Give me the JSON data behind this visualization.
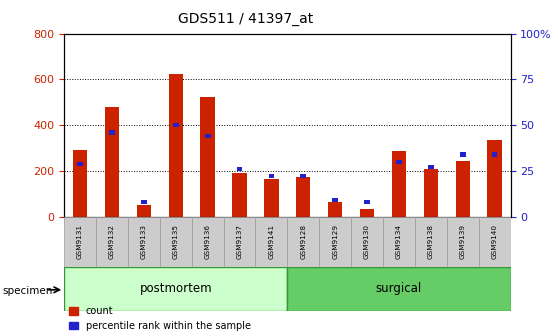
{
  "title": "GDS511 / 41397_at",
  "samples": [
    "GSM9131",
    "GSM9132",
    "GSM9133",
    "GSM9135",
    "GSM9136",
    "GSM9137",
    "GSM9141",
    "GSM9128",
    "GSM9129",
    "GSM9130",
    "GSM9134",
    "GSM9138",
    "GSM9139",
    "GSM9140"
  ],
  "count_values": [
    290,
    480,
    50,
    625,
    525,
    190,
    165,
    175,
    65,
    35,
    285,
    210,
    245,
    335
  ],
  "percentile_values": [
    29,
    46,
    8,
    50,
    44,
    26,
    22,
    22,
    9,
    8,
    30,
    27,
    34,
    34
  ],
  "groups": [
    {
      "label": "postmortem",
      "start": 0,
      "end": 7,
      "color": "#ccffcc"
    },
    {
      "label": "surgical",
      "start": 7,
      "end": 14,
      "color": "#66cc66"
    }
  ],
  "bar_color_red": "#cc2200",
  "bar_color_blue": "#2222cc",
  "left_axis_color": "#cc2200",
  "right_axis_color": "#2222cc",
  "ylim_left": [
    0,
    800
  ],
  "ylim_right": [
    0,
    100
  ],
  "left_yticks": [
    0,
    200,
    400,
    600,
    800
  ],
  "right_yticks": [
    0,
    25,
    50,
    75,
    100
  ],
  "right_yticklabels": [
    "0",
    "25",
    "50",
    "75",
    "100%"
  ],
  "specimen_label": "specimen",
  "legend_count": "count",
  "legend_percentile": "percentile rank within the sample",
  "tick_area_color": "#cccccc",
  "grid_color": "#000000",
  "postmortem_light": "#ccffcc",
  "surgical_green": "#55cc55",
  "group_border": "#339933"
}
